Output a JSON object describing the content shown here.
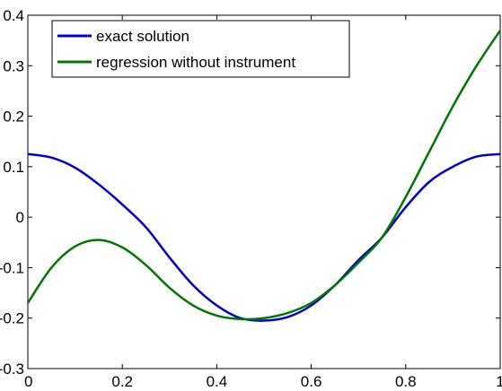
{
  "chart_data": {
    "type": "line",
    "title": "",
    "xlabel": "",
    "ylabel": "",
    "xlim": [
      0,
      1
    ],
    "ylim": [
      -0.3,
      0.4
    ],
    "x_ticks": [
      0,
      0.2,
      0.4,
      0.6,
      0.8,
      1
    ],
    "x_tick_labels": [
      "0",
      "0.2",
      "0.4",
      "0.6",
      "0.8",
      "1"
    ],
    "y_ticks": [
      -0.3,
      -0.2,
      -0.1,
      0,
      0.1,
      0.2,
      0.3,
      0.4
    ],
    "y_tick_labels": [
      "-0.3",
      "-0.2",
      "-0.1",
      "0",
      "0.1",
      "0.2",
      "0.3",
      "0.4"
    ],
    "grid": false,
    "legend_position": "top-left",
    "series": [
      {
        "name": "exact solution",
        "color": "#0000cc",
        "x": [
          0,
          0.05,
          0.1,
          0.15,
          0.2,
          0.25,
          0.3,
          0.35,
          0.4,
          0.45,
          0.5,
          0.55,
          0.6,
          0.65,
          0.7,
          0.75,
          0.8,
          0.85,
          0.9,
          0.95,
          1
        ],
        "y": [
          0.125,
          0.118,
          0.098,
          0.065,
          0.025,
          -0.02,
          -0.08,
          -0.135,
          -0.175,
          -0.2,
          -0.205,
          -0.198,
          -0.175,
          -0.135,
          -0.085,
          -0.04,
          0.02,
          0.07,
          0.1,
          0.12,
          0.125
        ]
      },
      {
        "name": "regression without instrument",
        "color": "#007700",
        "x": [
          0,
          0.05,
          0.1,
          0.15,
          0.2,
          0.25,
          0.3,
          0.35,
          0.4,
          0.45,
          0.5,
          0.55,
          0.6,
          0.65,
          0.7,
          0.75,
          0.8,
          0.85,
          0.9,
          0.95,
          1
        ],
        "y": [
          -0.17,
          -0.1,
          -0.058,
          -0.045,
          -0.06,
          -0.095,
          -0.14,
          -0.175,
          -0.195,
          -0.202,
          -0.2,
          -0.19,
          -0.17,
          -0.135,
          -0.09,
          -0.04,
          0.04,
          0.13,
          0.22,
          0.3,
          0.37
        ]
      }
    ]
  }
}
